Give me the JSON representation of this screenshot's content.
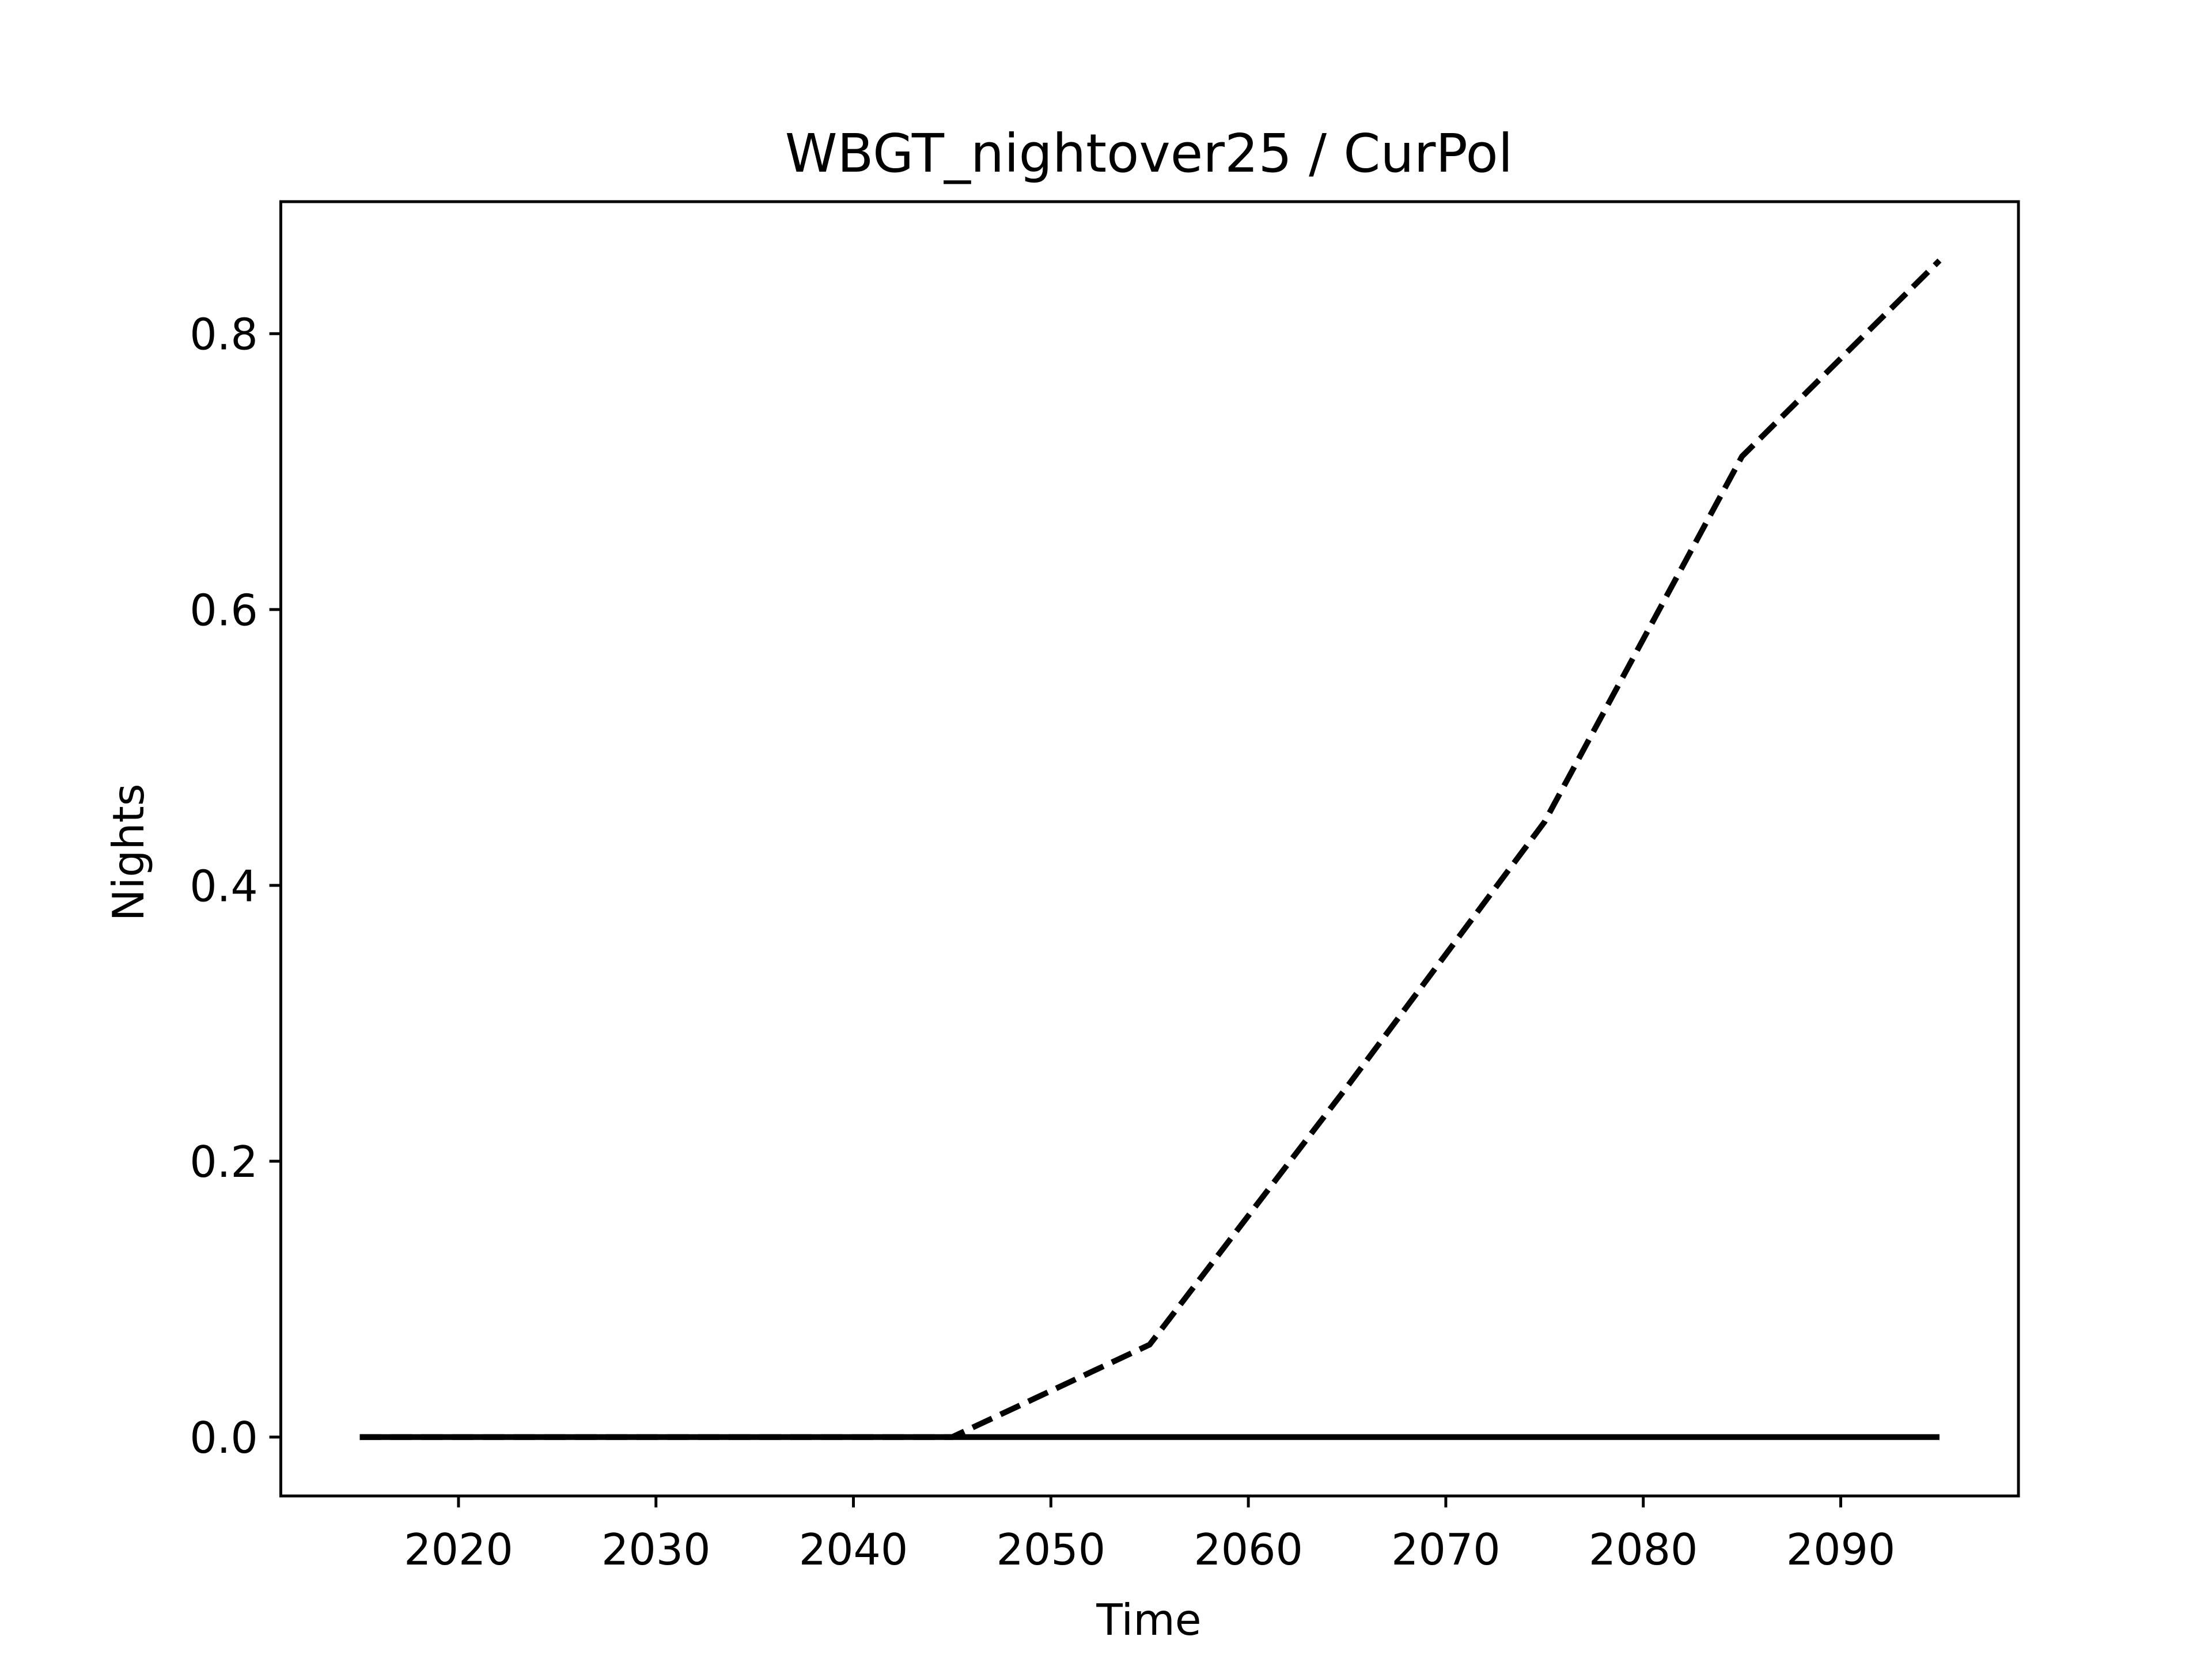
{
  "chart_data": {
    "type": "line",
    "title": "WBGT_nightover25 / CurPol",
    "x_label": "Time",
    "y_label": "Nights",
    "x": [
      2015,
      2025,
      2035,
      2045,
      2055,
      2065,
      2075,
      2085,
      2095
    ],
    "series": [
      {
        "color": "#000000",
        "dash": true,
        "values": [
          0,
          0,
          0,
          0,
          0.067,
          0.254,
          0.446,
          0.711,
          0.853
        ]
      },
      {
        "color": "#000000",
        "dash": false,
        "values": [
          0,
          0,
          0,
          0,
          0,
          0,
          0,
          0,
          0
        ]
      }
    ],
    "xlim": [
      2011,
      2099
    ],
    "xticks": [
      2020,
      2030,
      2040,
      2050,
      2060,
      2070,
      2080,
      2090
    ],
    "ylim": [
      -0.0427,
      0.8957
    ],
    "yticks": [
      {
        "value": 0,
        "label": "0.0"
      },
      {
        "value": 0.2,
        "label": "0.2"
      },
      {
        "value": 0.4,
        "label": "0.4"
      },
      {
        "value": 0.6,
        "label": "0.6"
      },
      {
        "value": 0.8,
        "label": "0.8"
      }
    ],
    "grid": false
  }
}
